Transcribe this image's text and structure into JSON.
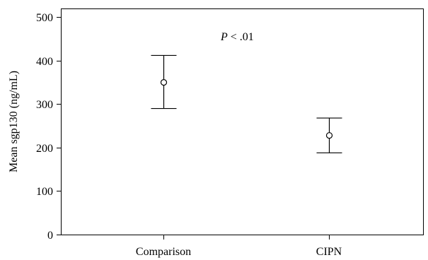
{
  "chart_data": {
    "type": "scatter",
    "title": "",
    "xlabel": "",
    "ylabel": "Mean sgp130 (ng/mL)",
    "categories": [
      "Comparison",
      "CIPN"
    ],
    "means": [
      350,
      228
    ],
    "error_bars": [
      {
        "low": 290,
        "high": 412
      },
      {
        "low": 188,
        "high": 268
      }
    ],
    "ylim": [
      0,
      520
    ],
    "yticks": [
      0,
      100,
      200,
      300,
      400,
      500
    ],
    "ytick_labels": [
      "0",
      "100",
      "200",
      "300",
      "400",
      "500"
    ],
    "grid": false,
    "annotation": {
      "italic_part": "P",
      "rest": " < .01"
    }
  }
}
